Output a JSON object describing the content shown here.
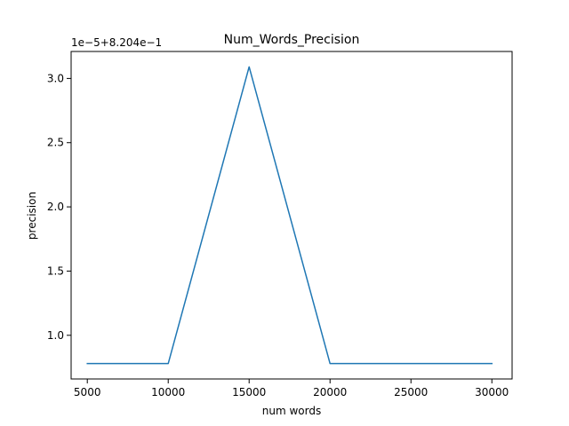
{
  "chart_data": {
    "type": "line",
    "title": "Num_Words_Precision",
    "xlabel": "num words",
    "ylabel": "precision",
    "offset_label": "1e−5+8.204e−1",
    "x": [
      5000,
      10000,
      15000,
      20000,
      25000,
      30000
    ],
    "series": [
      {
        "name": "",
        "color": "#1f77b4",
        "values": [
          0.78,
          0.78,
          3.09,
          0.78,
          0.78,
          0.78
        ]
      }
    ],
    "xlim": [
      4000,
      31250
    ],
    "ylim": [
      0.66,
      3.21
    ],
    "xticks": [
      5000,
      10000,
      15000,
      20000,
      25000,
      30000
    ],
    "xtick_labels": [
      "5000",
      "10000",
      "15000",
      "20000",
      "25000",
      "30000"
    ],
    "yticks": [
      1.0,
      1.5,
      2.0,
      2.5,
      3.0
    ],
    "ytick_labels": [
      "1.0",
      "1.5",
      "2.0",
      "2.5",
      "3.0"
    ],
    "grid": false,
    "legend": "none"
  }
}
